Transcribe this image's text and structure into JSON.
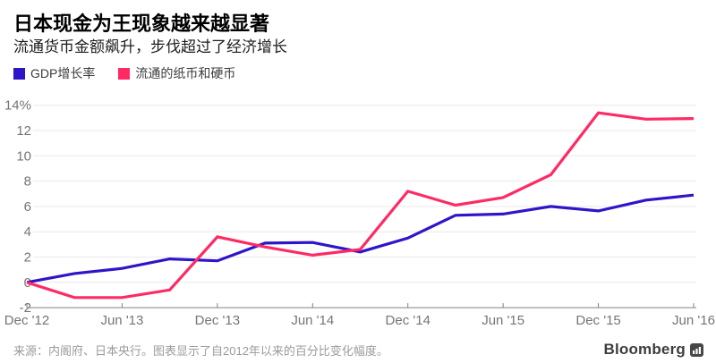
{
  "header": {
    "title": "日本现金为王现象越来越显著",
    "subtitle": "流通货币金额飙升，步伐超过了经济增长"
  },
  "legend": [
    {
      "label": "GDP增长率",
      "color": "#2e16c8"
    },
    {
      "label": "流通的纸币和硬币",
      "color": "#ff2a63"
    }
  ],
  "footer": {
    "source": "来源：内阁府、日本央行。图表显示了自2012年以来的百分比变化幅度。",
    "brand": "Bloomberg",
    "brand_icon": "bar-chart-icon"
  },
  "chart_data": {
    "type": "line",
    "title": "日本现金为王现象越来越显著",
    "subtitle": "流通货币金额飙升，步伐超过了经济增长",
    "x": [
      "Dec '12",
      "Mar '13",
      "Jun '13",
      "Sep '13",
      "Dec '13",
      "Mar '14",
      "Jun '14",
      "Sep '14",
      "Dec '14",
      "Mar '15",
      "Jun '15",
      "Sep '15",
      "Dec '15",
      "Mar '16",
      "Jun '16"
    ],
    "x_tick_labels": [
      "Dec '12",
      "Jun '13",
      "Dec '13",
      "Jun '14",
      "Dec '14",
      "Jun '15",
      "Dec '15",
      "Jun '16"
    ],
    "x_tick_indices": [
      0,
      2,
      4,
      6,
      8,
      10,
      12,
      14
    ],
    "y_ticks": [
      14,
      12,
      10,
      8,
      6,
      4,
      2,
      0,
      -2
    ],
    "y_top_tick_label": "14%",
    "ylim": [
      -2,
      14
    ],
    "grid": "horizontal",
    "legend_position": "top-left",
    "series": [
      {
        "name": "GDP增长率",
        "color": "#2e16c8",
        "values": [
          0,
          0.7,
          1.1,
          1.85,
          1.7,
          3.1,
          3.15,
          2.4,
          3.5,
          5.3,
          5.4,
          6.0,
          5.65,
          6.5,
          6.9
        ]
      },
      {
        "name": "流通的纸币和硬币",
        "color": "#ff2a63",
        "values": [
          0,
          -1.2,
          -1.2,
          -0.6,
          3.6,
          2.8,
          2.15,
          2.6,
          7.2,
          6.1,
          6.7,
          8.5,
          13.4,
          12.9,
          12.95
        ]
      }
    ],
    "colors": {
      "grid": "#e9e9e9",
      "axis": "#808080",
      "tick_label": "#757575"
    }
  }
}
